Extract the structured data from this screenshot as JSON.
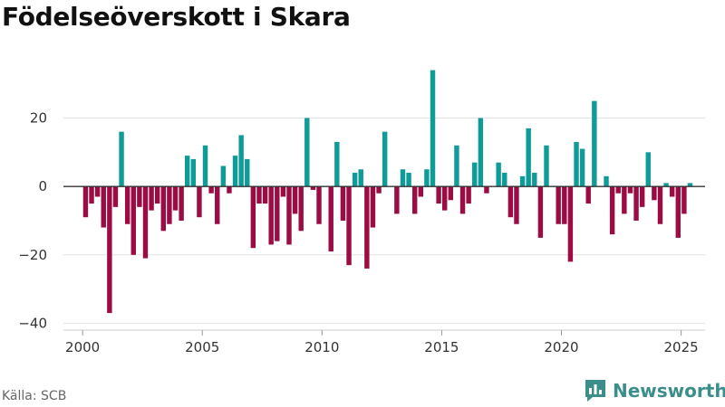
{
  "header": {
    "title": "Födelseöverskott i Skara"
  },
  "footer": {
    "source": "Källa: SCB",
    "brand": "Newsworthy"
  },
  "colors": {
    "positive": "#0f9c98",
    "negative": "#9b0c44",
    "grid": "#e2e2e2",
    "zero_line": "#333333",
    "brand": "#3b8e8a"
  },
  "chart_data": {
    "type": "bar",
    "title": "Födelseöverskott i Skara",
    "xlabel": "",
    "ylabel": "",
    "period": "quarterly",
    "start": [
      2000,
      1
    ],
    "ylim": [
      -42,
      36
    ],
    "xlim": [
      1999.2,
      2026.0
    ],
    "y_ticks": [
      -40,
      -20,
      0,
      20
    ],
    "x_ticks": [
      2000,
      2005,
      2010,
      2015,
      2020,
      2025
    ],
    "grid": true,
    "values": [
      -9,
      -5,
      -3,
      -12,
      -37,
      -6,
      16,
      -11,
      -20,
      -6,
      -21,
      -7,
      -5,
      -13,
      -11,
      -7,
      -10,
      9,
      8,
      -9,
      12,
      -2,
      -11,
      6,
      -2,
      9,
      15,
      8,
      -18,
      -5,
      -5,
      -17,
      -16,
      -3,
      -17,
      -8,
      -13,
      20,
      -1,
      -11,
      0,
      -19,
      13,
      -10,
      -23,
      4,
      5,
      -24,
      -12,
      -2,
      16,
      0,
      -8,
      5,
      4,
      -8,
      -3,
      5,
      34,
      -5,
      -7,
      -4,
      12,
      -8,
      -5,
      7,
      20,
      -2,
      0,
      7,
      4,
      -9,
      -11,
      3,
      17,
      4,
      -15,
      12,
      0,
      -11,
      -11,
      -22,
      13,
      11,
      -5,
      25,
      0,
      3,
      -14,
      -2,
      -8,
      -2,
      -10,
      -6,
      10,
      -4,
      -11,
      1,
      -3,
      -15,
      -8,
      1
    ]
  }
}
